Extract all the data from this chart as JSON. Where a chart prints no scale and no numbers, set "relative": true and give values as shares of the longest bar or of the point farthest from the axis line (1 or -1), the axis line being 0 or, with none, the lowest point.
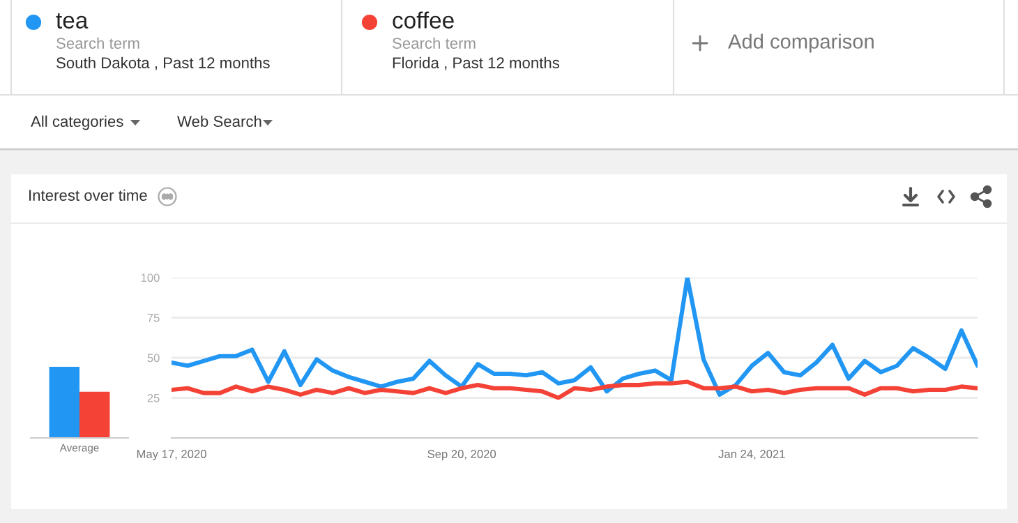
{
  "chart_data": [
    {
      "type": "bar",
      "categories": [
        "Average"
      ],
      "relative": true,
      "series": [
        {
          "color": "#2196f3",
          "values": [
            1
          ]
        },
        {
          "color": "#f44336",
          "values": [
            0.65
          ]
        }
      ]
    },
    {
      "type": "line",
      "title": "Interest over time",
      "annotations": [
        "Search term",
        "South Dakota , Past 12 months",
        "Search term",
        "Florida , Past 12 months",
        "Add comparison",
        "All categories",
        "Web Search"
      ],
      "x": [
        "2020-05-17",
        "2020-05-24",
        "2020-05-31",
        "2020-06-07",
        "2020-06-14",
        "2020-06-21",
        "2020-06-28",
        "2020-07-05",
        "2020-07-12",
        "2020-07-19",
        "2020-07-26",
        "2020-08-02",
        "2020-08-09",
        "2020-08-16",
        "2020-08-23",
        "2020-08-30",
        "2020-09-06",
        "2020-09-13",
        "2020-09-20",
        "2020-09-27",
        "2020-10-04",
        "2020-10-11",
        "2020-10-18",
        "2020-10-25",
        "2020-11-01",
        "2020-11-08",
        "2020-11-15",
        "2020-11-22",
        "2020-11-29",
        "2020-12-06",
        "2020-12-13",
        "2020-12-20",
        "2020-12-27",
        "2021-01-03",
        "2021-01-10",
        "2021-01-17",
        "2021-01-24",
        "2021-01-31",
        "2021-02-07",
        "2021-02-14",
        "2021-02-21",
        "2021-02-28",
        "2021-03-07",
        "2021-03-14",
        "2021-03-21",
        "2021-03-28",
        "2021-04-04",
        "2021-04-11",
        "2021-04-18",
        "2021-04-25",
        "2021-05-02"
      ],
      "series": [
        {
          "name": "tea",
          "color": "#2196f3",
          "values": [
            47,
            45,
            48,
            51,
            51,
            55,
            35,
            54,
            33,
            49,
            42,
            38,
            35,
            32,
            35,
            37,
            48,
            39,
            32,
            46,
            40,
            40,
            39,
            41,
            34,
            36,
            44,
            29,
            37,
            40,
            42,
            36,
            100,
            49,
            27,
            33,
            45,
            53,
            41,
            39,
            47,
            58,
            37,
            48,
            41,
            45,
            56,
            50,
            43,
            67,
            45
          ]
        },
        {
          "name": "coffee",
          "color": "#f44336",
          "values": [
            30,
            31,
            28,
            28,
            32,
            29,
            32,
            30,
            27,
            30,
            28,
            31,
            28,
            30,
            29,
            28,
            31,
            28,
            31,
            33,
            31,
            31,
            30,
            29,
            25,
            31,
            30,
            32,
            33,
            33,
            34,
            34,
            35,
            31,
            31,
            32,
            29,
            30,
            28,
            30,
            31,
            31,
            31,
            27,
            31,
            31,
            29,
            30,
            30,
            32,
            31
          ]
        }
      ],
      "xlim": [
        "2020-05-17",
        "2021-05-02"
      ],
      "xticks": [
        {
          "value": "2020-05-17",
          "label": "May 17, 2020"
        },
        {
          "value": "2020-09-20",
          "label": "Sep 20, 2020"
        },
        {
          "value": "2021-01-24",
          "label": "Jan 24, 2021"
        }
      ],
      "ylim": [
        0,
        100
      ],
      "yticks": [
        25,
        50,
        75,
        100
      ],
      "grid": "y",
      "legend": "top left"
    }
  ]
}
